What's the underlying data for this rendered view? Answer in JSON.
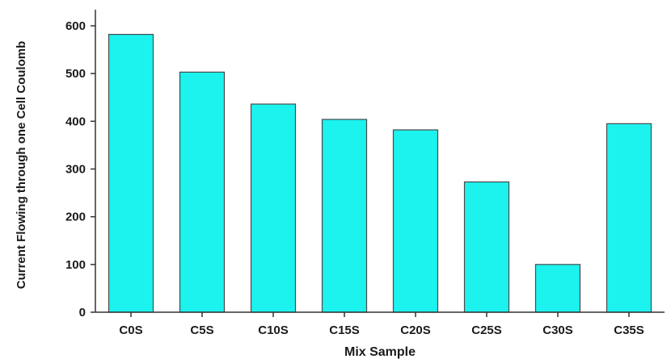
{
  "chart_data": {
    "type": "bar",
    "title": "",
    "xlabel": "Mix Sample",
    "ylabel": "Current Flowing through one Cell Coulomb",
    "categories": [
      "C0S",
      "C5S",
      "C10S",
      "C15S",
      "C20S",
      "C25S",
      "C30S",
      "C35S"
    ],
    "values": [
      582,
      503,
      436,
      404,
      382,
      273,
      100,
      395
    ],
    "ylim": [
      0,
      620
    ],
    "yticks": [
      0,
      100,
      200,
      300,
      400,
      500,
      600
    ],
    "grid": false,
    "legend": "none",
    "bar_color": "#1cf2ee",
    "bar_edge_color": "#4a4a4a",
    "axis_color": "#333333"
  }
}
